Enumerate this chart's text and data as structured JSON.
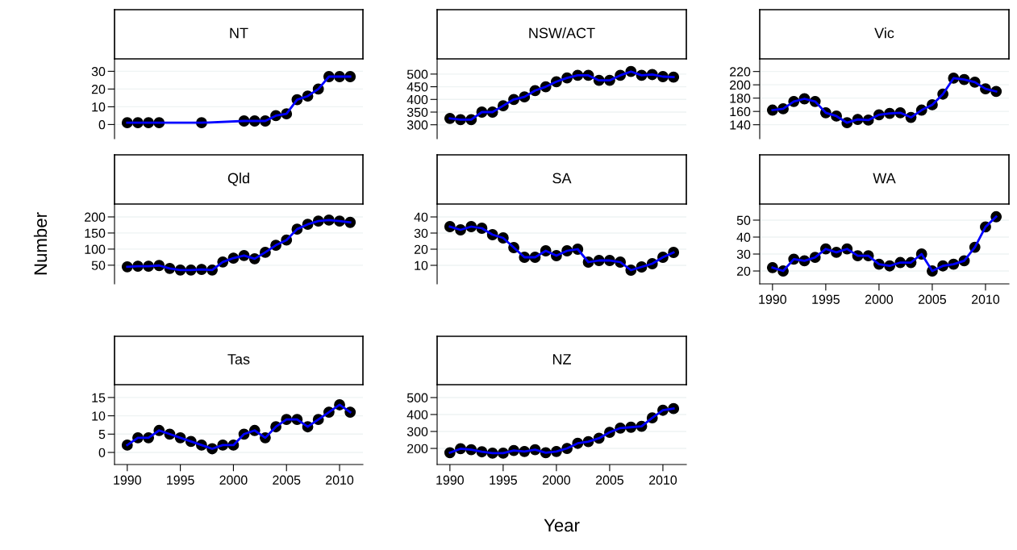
{
  "chart_data": [
    {
      "type": "line",
      "title": "NT",
      "x": [
        1990,
        1991,
        1992,
        1993,
        1997,
        2001,
        2002,
        2003,
        2004,
        2005,
        2006,
        2007,
        2008,
        2009,
        2010,
        2011
      ],
      "xlim": [
        1988.8,
        2012.2
      ],
      "ylim": [
        -8,
        37
      ],
      "yticks": [
        0,
        10,
        20,
        30
      ],
      "tick_labels": "y",
      "grid": "y",
      "series": [
        {
          "type": "scatter",
          "color": "#000000",
          "marker": "circle",
          "values": [
            1,
            1,
            1,
            1,
            1,
            2,
            2,
            2,
            5,
            6,
            14,
            16,
            20,
            27,
            27,
            27
          ]
        },
        {
          "type": "line",
          "color": "#0000ff",
          "line_style": "solid",
          "values": [
            1,
            1,
            1,
            1,
            1,
            2,
            2,
            2,
            5,
            6,
            14,
            16,
            20,
            27,
            27,
            27
          ]
        }
      ]
    },
    {
      "type": "line",
      "title": "NSW/ACT",
      "x": [
        1990,
        1991,
        1992,
        1993,
        1994,
        1995,
        1996,
        1997,
        1998,
        1999,
        2000,
        2001,
        2002,
        2003,
        2004,
        2005,
        2006,
        2007,
        2008,
        2009,
        2010,
        2011
      ],
      "xlim": [
        1988.8,
        2012.2
      ],
      "ylim": [
        245,
        560
      ],
      "yticks": [
        300,
        350,
        400,
        450,
        500
      ],
      "tick_labels": "y",
      "grid": "y",
      "series": [
        {
          "type": "scatter",
          "color": "#000000",
          "marker": "circle",
          "values": [
            325,
            320,
            320,
            350,
            350,
            375,
            400,
            410,
            435,
            450,
            470,
            485,
            495,
            495,
            475,
            475,
            495,
            510,
            495,
            498,
            490,
            488
          ]
        },
        {
          "type": "line",
          "color": "#0000ff",
          "line_style": "solid",
          "values": [
            325,
            320,
            320,
            350,
            350,
            375,
            400,
            410,
            435,
            450,
            470,
            485,
            495,
            495,
            475,
            475,
            495,
            510,
            495,
            498,
            490,
            488
          ]
        }
      ]
    },
    {
      "type": "line",
      "title": "Vic",
      "x": [
        1990,
        1991,
        1992,
        1993,
        1994,
        1995,
        1996,
        1997,
        1998,
        1999,
        2000,
        2001,
        2002,
        2003,
        2004,
        2005,
        2006,
        2007,
        2008,
        2009,
        2010,
        2011
      ],
      "xlim": [
        1988.8,
        2012.2
      ],
      "ylim": [
        119,
        239
      ],
      "yticks": [
        140,
        160,
        180,
        200,
        220
      ],
      "tick_labels": "y",
      "grid": "y",
      "series": [
        {
          "type": "scatter",
          "color": "#000000",
          "marker": "circle",
          "values": [
            162,
            164,
            175,
            179,
            175,
            158,
            153,
            143,
            148,
            147,
            155,
            157,
            158,
            151,
            162,
            170,
            186,
            210,
            208,
            204,
            194,
            190
          ]
        },
        {
          "type": "line",
          "color": "#0000ff",
          "line_style": "solid",
          "values": [
            162,
            164,
            175,
            179,
            175,
            158,
            153,
            143,
            148,
            147,
            155,
            157,
            158,
            151,
            162,
            170,
            186,
            210,
            208,
            204,
            194,
            190
          ]
        }
      ]
    },
    {
      "type": "line",
      "title": "Qld",
      "ylabel": "Number",
      "x": [
        1990,
        1991,
        1992,
        1993,
        1994,
        1995,
        1996,
        1997,
        1998,
        1999,
        2000,
        2001,
        2002,
        2003,
        2004,
        2005,
        2006,
        2007,
        2008,
        2009,
        2010,
        2011
      ],
      "xlim": [
        1988.8,
        2012.2
      ],
      "ylim": [
        -8,
        240
      ],
      "yticks": [
        50,
        100,
        150,
        200
      ],
      "tick_labels": "y",
      "grid": "y",
      "series": [
        {
          "type": "scatter",
          "color": "#000000",
          "marker": "circle",
          "values": [
            45,
            47,
            47,
            49,
            40,
            35,
            35,
            37,
            35,
            60,
            72,
            80,
            70,
            90,
            112,
            128,
            162,
            177,
            187,
            190,
            187,
            183
          ]
        },
        {
          "type": "line",
          "color": "#0000ff",
          "line_style": "solid",
          "values": [
            45,
            47,
            47,
            49,
            40,
            35,
            35,
            37,
            35,
            60,
            72,
            80,
            70,
            90,
            112,
            128,
            162,
            177,
            187,
            190,
            187,
            183
          ]
        }
      ]
    },
    {
      "type": "line",
      "title": "SA",
      "x": [
        1990,
        1991,
        1992,
        1993,
        1994,
        1995,
        1996,
        1997,
        1998,
        1999,
        2000,
        2001,
        2002,
        2003,
        2004,
        2005,
        2006,
        2007,
        2008,
        2009,
        2010,
        2011
      ],
      "xlim": [
        1988.8,
        2012.2
      ],
      "ylim": [
        -1.5,
        48
      ],
      "yticks": [
        10,
        20,
        30,
        40
      ],
      "tick_labels": "y",
      "grid": "y",
      "series": [
        {
          "type": "scatter",
          "color": "#000000",
          "marker": "circle",
          "values": [
            34,
            32,
            34,
            33,
            29,
            27,
            21,
            15,
            15,
            19,
            16,
            19,
            20,
            12,
            13,
            13,
            12,
            7,
            9,
            11,
            15,
            18
          ]
        },
        {
          "type": "line",
          "color": "#0000ff",
          "line_style": "solid",
          "values": [
            34,
            32,
            34,
            33,
            29,
            27,
            21,
            15,
            15,
            19,
            16,
            19,
            20,
            12,
            13,
            13,
            12,
            7,
            9,
            11,
            15,
            18
          ]
        }
      ]
    },
    {
      "type": "line",
      "title": "WA",
      "x": [
        1990,
        1991,
        1992,
        1993,
        1994,
        1995,
        1996,
        1997,
        1998,
        1999,
        2000,
        2001,
        2002,
        2003,
        2004,
        2005,
        2006,
        2007,
        2008,
        2009,
        2010,
        2011
      ],
      "xlim": [
        1988.8,
        2012.2
      ],
      "xticks": [
        1990,
        1995,
        2000,
        2005,
        2010
      ],
      "ylim": [
        12.4,
        59.5
      ],
      "yticks": [
        20,
        30,
        40,
        50
      ],
      "grid": "y",
      "series": [
        {
          "type": "scatter",
          "color": "#000000",
          "marker": "circle",
          "values": [
            22,
            20,
            27,
            26,
            28,
            33,
            31,
            33,
            29,
            29,
            24,
            23,
            25,
            25,
            30,
            20,
            23,
            24,
            26,
            34,
            46,
            52
          ]
        },
        {
          "type": "line",
          "color": "#0000ff",
          "line_style": "solid",
          "values": [
            22,
            20,
            27,
            26,
            28,
            33,
            31,
            33,
            29,
            29,
            24,
            23,
            25,
            25,
            30,
            20,
            23,
            24,
            26,
            34,
            46,
            52
          ]
        }
      ]
    },
    {
      "type": "line",
      "title": "Tas",
      "x": [
        1990,
        1991,
        1992,
        1993,
        1994,
        1995,
        1996,
        1997,
        1998,
        1999,
        2000,
        2001,
        2002,
        2003,
        2004,
        2005,
        2006,
        2007,
        2008,
        2009,
        2010,
        2011
      ],
      "xlim": [
        1988.8,
        2012.2
      ],
      "xticks": [
        1990,
        1995,
        2000,
        2005,
        2010
      ],
      "ylim": [
        -3.3,
        18.5
      ],
      "yticks": [
        0,
        5,
        10,
        15
      ],
      "grid": "y",
      "series": [
        {
          "type": "scatter",
          "color": "#000000",
          "marker": "circle",
          "values": [
            2,
            4,
            4,
            6,
            5,
            4,
            3,
            2,
            1,
            2,
            2,
            5,
            6,
            4,
            7,
            9,
            9,
            7,
            9,
            11,
            13,
            11
          ]
        },
        {
          "type": "line",
          "color": "#0000ff",
          "line_style": "solid",
          "values": [
            2,
            4,
            4,
            6,
            5,
            4,
            3,
            2,
            1,
            2,
            2,
            5,
            6,
            4,
            7,
            9,
            9,
            7,
            9,
            11,
            13,
            11
          ]
        }
      ]
    },
    {
      "type": "line",
      "title": "NZ",
      "xlabel": "Year",
      "x": [
        1990,
        1991,
        1992,
        1993,
        1994,
        1995,
        1996,
        1997,
        1998,
        1999,
        2000,
        2001,
        2002,
        2003,
        2004,
        2005,
        2006,
        2007,
        2008,
        2009,
        2010,
        2011
      ],
      "xlim": [
        1988.8,
        2012.2
      ],
      "xticks": [
        1990,
        1995,
        2000,
        2005,
        2010
      ],
      "ylim": [
        105,
        576
      ],
      "yticks": [
        200,
        300,
        400,
        500
      ],
      "grid": "y",
      "series": [
        {
          "type": "scatter",
          "color": "#000000",
          "marker": "circle",
          "values": [
            175,
            198,
            192,
            180,
            172,
            172,
            188,
            182,
            192,
            175,
            182,
            200,
            230,
            240,
            260,
            295,
            320,
            325,
            330,
            380,
            425,
            435
          ]
        },
        {
          "type": "line",
          "color": "#0000ff",
          "line_style": "solid",
          "values": [
            175,
            198,
            192,
            180,
            172,
            172,
            188,
            182,
            192,
            175,
            182,
            200,
            230,
            240,
            260,
            295,
            320,
            325,
            330,
            380,
            425,
            435
          ]
        }
      ]
    }
  ]
}
